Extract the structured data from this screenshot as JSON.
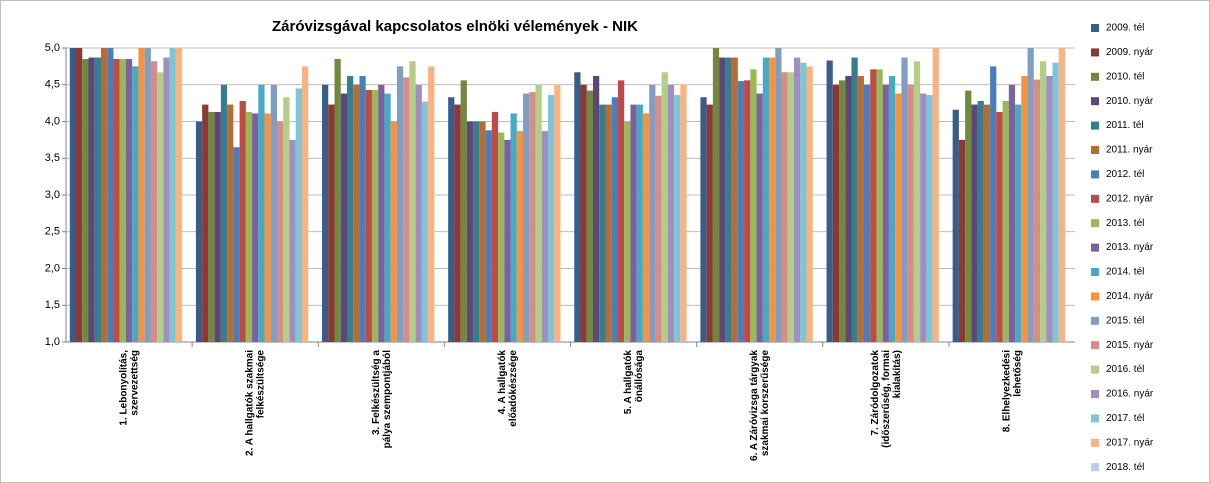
{
  "chart_data": {
    "type": "bar",
    "title": "Záróvizsgával kapcsolatos elnöki vélemények  - NIK",
    "categories": [
      [
        "1. Lebonyolítás,",
        "szervezettség"
      ],
      [
        "2. A hallgatók szakmai",
        "felkészültsége"
      ],
      [
        "3. Felkészültség a",
        "pálya szempontjából"
      ],
      [
        "4. A hallgatók",
        "előadókészsége"
      ],
      [
        "5. A hallgatók",
        "önállósága"
      ],
      [
        "6. A Záróvizsga tárgyak",
        "szakmai korszerűsége"
      ],
      [
        "7. Záródolgozatok",
        "(időszerűség, formai",
        "kialakítás)"
      ],
      [
        "8. Elhelyezkedési",
        "lehetőség"
      ]
    ],
    "ylim": [
      1,
      5
    ],
    "yticks": [
      {
        "value": 1,
        "label": "1,0"
      },
      {
        "value": 1.5,
        "label": "1,5"
      },
      {
        "value": 2,
        "label": "2,0"
      },
      {
        "value": 2.5,
        "label": "2,5"
      },
      {
        "value": 3,
        "label": "3,0"
      },
      {
        "value": 3.5,
        "label": "3,5"
      },
      {
        "value": 4,
        "label": "4,0"
      },
      {
        "value": 4.5,
        "label": "4,5"
      },
      {
        "value": 5,
        "label": "5,0"
      }
    ],
    "grid": true,
    "legend": "right",
    "series": [
      {
        "name": "2009. tél",
        "color": "#385D8A",
        "values": [
          5.0,
          4.0,
          4.5,
          4.33,
          4.67,
          4.33,
          4.83,
          4.16
        ]
      },
      {
        "name": "2009. nyár",
        "color": "#8C3836",
        "values": [
          5.0,
          4.23,
          4.23,
          4.23,
          4.5,
          4.23,
          4.5,
          3.75
        ]
      },
      {
        "name": "2010. tél",
        "color": "#71893F",
        "values": [
          4.85,
          4.13,
          4.85,
          4.56,
          4.42,
          5.0,
          4.56,
          4.42
        ]
      },
      {
        "name": "2010. nyár",
        "color": "#5C4776",
        "values": [
          4.87,
          4.13,
          4.38,
          4.0,
          4.62,
          4.87,
          4.62,
          4.23
        ]
      },
      {
        "name": "2011. tél",
        "color": "#357D91",
        "values": [
          4.87,
          4.5,
          4.62,
          4.0,
          4.23,
          4.87,
          4.87,
          4.28
        ]
      },
      {
        "name": "2011. nyár",
        "color": "#B66D31",
        "values": [
          5.0,
          4.23,
          4.5,
          4.0,
          4.23,
          4.87,
          4.62,
          4.23
        ]
      },
      {
        "name": "2012. tél",
        "color": "#4A7EBB",
        "values": [
          5.0,
          3.65,
          4.62,
          3.88,
          4.33,
          4.55,
          4.5,
          4.75
        ]
      },
      {
        "name": "2012. nyár",
        "color": "#BE4B48",
        "values": [
          4.85,
          4.28,
          4.43,
          4.13,
          4.56,
          4.56,
          4.71,
          4.13
        ]
      },
      {
        "name": "2013. tél",
        "color": "#98B954",
        "values": [
          4.85,
          4.13,
          4.43,
          3.85,
          4.0,
          4.71,
          4.71,
          4.28
        ]
      },
      {
        "name": "2013. nyár",
        "color": "#7D60A0",
        "values": [
          4.85,
          4.11,
          4.5,
          3.75,
          4.23,
          4.38,
          4.5,
          4.5
        ]
      },
      {
        "name": "2014. tél",
        "color": "#46AAC5",
        "values": [
          4.75,
          4.5,
          4.38,
          4.11,
          4.23,
          4.87,
          4.62,
          4.23
        ]
      },
      {
        "name": "2014. nyár",
        "color": "#F69240",
        "values": [
          5.0,
          4.11,
          4.0,
          3.87,
          4.11,
          4.87,
          4.38,
          4.62
        ]
      },
      {
        "name": "2015. tél",
        "color": "#809EC2",
        "values": [
          5.0,
          4.5,
          4.75,
          4.38,
          4.5,
          5.0,
          4.87,
          5.0
        ]
      },
      {
        "name": "2015. nyár",
        "color": "#D88C8A",
        "values": [
          4.82,
          4.0,
          4.6,
          4.4,
          4.35,
          4.67,
          4.5,
          4.57
        ]
      },
      {
        "name": "2016. tél",
        "color": "#B5CE86",
        "values": [
          4.67,
          4.33,
          4.82,
          4.5,
          4.67,
          4.67,
          4.82,
          4.82
        ]
      },
      {
        "name": "2016. nyár",
        "color": "#A08FBE",
        "values": [
          4.87,
          3.75,
          4.5,
          3.87,
          4.5,
          4.87,
          4.38,
          4.62
        ]
      },
      {
        "name": "2017. tél",
        "color": "#7FC4D8",
        "values": [
          5.0,
          4.45,
          4.27,
          4.36,
          4.36,
          4.8,
          4.36,
          4.8
        ]
      },
      {
        "name": "2017. nyár",
        "color": "#F9B381",
        "values": [
          5.0,
          4.75,
          4.75,
          4.5,
          4.5,
          4.75,
          5.0,
          5.0
        ]
      },
      {
        "name": "2018. tél",
        "color": "#B9CDE5",
        "values": [
          null,
          null,
          null,
          null,
          null,
          null,
          null,
          null
        ]
      }
    ]
  }
}
